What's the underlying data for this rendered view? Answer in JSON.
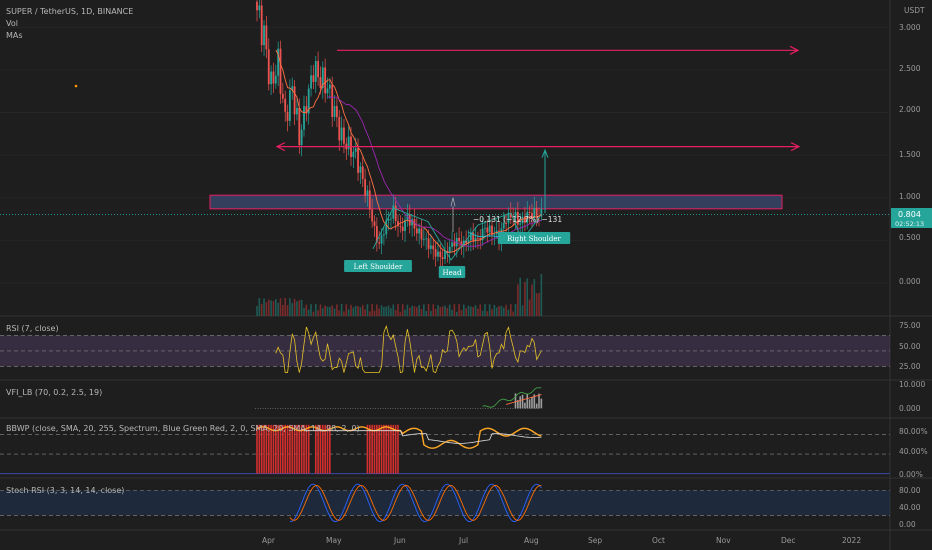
{
  "header": {
    "symbol": "SUPER / TetherUS, 1D, BINANCE",
    "vol_label": "Vol",
    "mas_label": "MAs",
    "currency": "USDT"
  },
  "price_badge": {
    "price": "0.804",
    "countdown": "02:52:13",
    "color": "#26a69a"
  },
  "colors": {
    "up": "#26a69a",
    "down": "#ef5350",
    "pink": "#e91e63",
    "rsi": "#e6c229",
    "rsi_band": "#4a3a5c",
    "zone": "#3c4a73",
    "bbwp_bar": "#d32f2f"
  },
  "chart_data": [
    {
      "type": "candlestick",
      "title": "SUPER / TetherUS, 1D, BINANCE",
      "x_ticks": [
        "Apr",
        "May",
        "Jun",
        "Jul",
        "Aug",
        "Sep",
        "Oct",
        "Nov",
        "Dec",
        "2022"
      ],
      "y_ticks": [
        "3.000",
        "2.500",
        "2.000",
        "1.500",
        "1.000",
        "0.500",
        "0.000"
      ],
      "ylim": [
        -0.2,
        3.25
      ],
      "current_price": 0.804,
      "close_path": [
        {
          "x": 0,
          "y": 3.2
        },
        {
          "x": 3,
          "y": 2.9
        },
        {
          "x": 6,
          "y": 2.3
        },
        {
          "x": 9,
          "y": 2.6
        },
        {
          "x": 12,
          "y": 1.9
        },
        {
          "x": 15,
          "y": 2.3
        },
        {
          "x": 18,
          "y": 1.7
        },
        {
          "x": 21,
          "y": 2.1
        },
        {
          "x": 24,
          "y": 2.5
        },
        {
          "x": 27,
          "y": 2.4
        },
        {
          "x": 30,
          "y": 2.3
        },
        {
          "x": 33,
          "y": 2.0
        },
        {
          "x": 36,
          "y": 1.7
        },
        {
          "x": 39,
          "y": 1.6
        },
        {
          "x": 42,
          "y": 1.5
        },
        {
          "x": 45,
          "y": 1.2
        },
        {
          "x": 48,
          "y": 0.9
        },
        {
          "x": 50,
          "y": 0.6
        },
        {
          "x": 52,
          "y": 0.45
        },
        {
          "x": 55,
          "y": 0.7
        },
        {
          "x": 58,
          "y": 0.85
        },
        {
          "x": 61,
          "y": 0.6
        },
        {
          "x": 64,
          "y": 0.78
        },
        {
          "x": 67,
          "y": 0.65
        },
        {
          "x": 70,
          "y": 0.55
        },
        {
          "x": 73,
          "y": 0.45
        },
        {
          "x": 76,
          "y": 0.35
        },
        {
          "x": 79,
          "y": 0.3
        },
        {
          "x": 82,
          "y": 0.42
        },
        {
          "x": 85,
          "y": 0.5
        },
        {
          "x": 88,
          "y": 0.45
        },
        {
          "x": 91,
          "y": 0.55
        },
        {
          "x": 94,
          "y": 0.5
        },
        {
          "x": 97,
          "y": 0.65
        },
        {
          "x": 100,
          "y": 0.6
        },
        {
          "x": 103,
          "y": 0.55
        },
        {
          "x": 106,
          "y": 0.75
        },
        {
          "x": 109,
          "y": 0.8
        },
        {
          "x": 112,
          "y": 0.7
        },
        {
          "x": 115,
          "y": 0.8
        },
        {
          "x": 118,
          "y": 0.82
        },
        {
          "x": 121,
          "y": 0.804
        }
      ],
      "resistance_levels": [
        2.73,
        1.6
      ],
      "zone": [
        0.87,
        1.03
      ],
      "pattern_labels": [
        "Left Shoulder",
        "Head",
        "Right Shoulder"
      ],
      "measure_label": "−0.131 (−12.7%) −131"
    },
    {
      "type": "line",
      "title": "RSI (7, close)",
      "y_ticks": [
        "75.00",
        "50.00",
        "25.00"
      ],
      "ylim": [
        15,
        90
      ],
      "bands": [
        70,
        30
      ]
    },
    {
      "type": "line",
      "title": "VFI_LB (70, 0.2, 2.5, 19)",
      "y_ticks": [
        "10.000",
        "0.000"
      ],
      "ylim": [
        -3,
        13
      ]
    },
    {
      "type": "line",
      "title": "BBWP (close, SMA, 20, 255, Spectrum, Blue Green Red, 2, 0, SMA, 20, SMA, 14, 98, 2, 0)",
      "y_ticks": [
        "80.00%",
        "40.00%",
        "0.00%"
      ],
      "ylim": [
        -5,
        110
      ]
    },
    {
      "type": "line",
      "title": "Stoch RSI (3, 3, 14, 14, close)",
      "y_ticks": [
        "80.00",
        "40.00",
        "0.00"
      ],
      "ylim": [
        -10,
        100
      ]
    }
  ]
}
